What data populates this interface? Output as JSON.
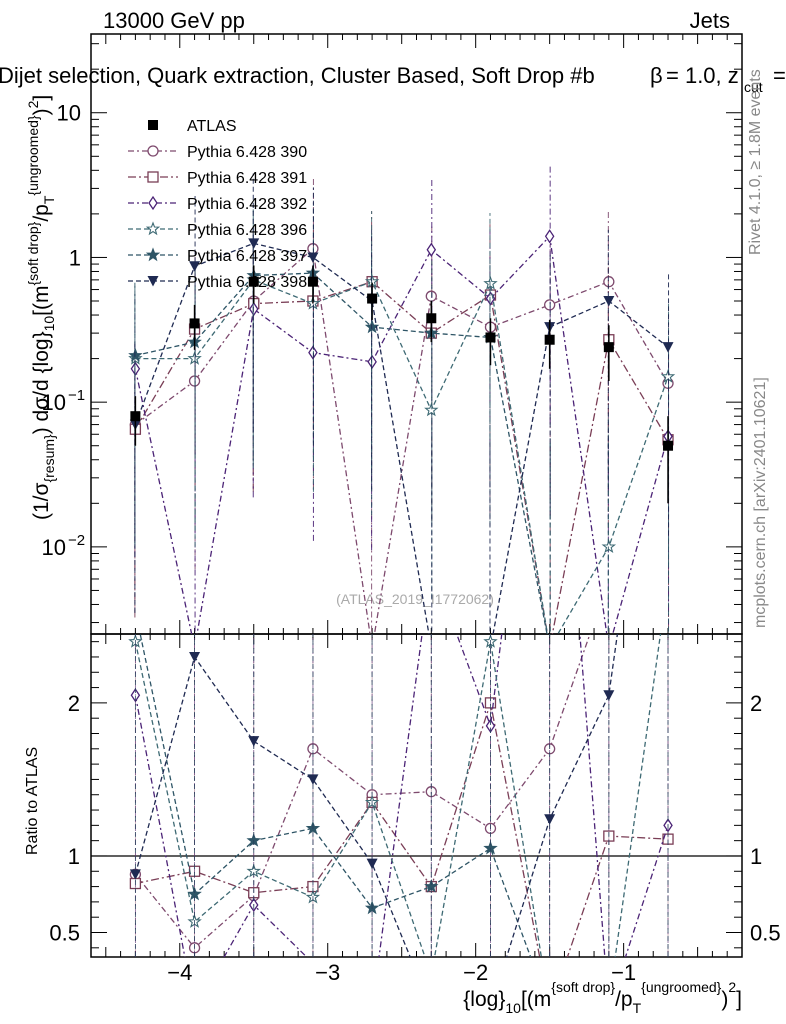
{
  "header": {
    "energy": "13000 GeV pp",
    "process": "Jets",
    "selection": "Dijet selection, Quark extraction, Cluster Based, Soft Drop #b",
    "beta_text": "= 1.0, z",
    "zcut_sub": "cut",
    "zcut_tail": "=",
    "beta_symbol": "β"
  },
  "side_labels": {
    "rivet": "Rivet 4.1.0, ≥ 1.8M events",
    "mcplots": "mcplots.cern.ch [arXiv:2401.10621]"
  },
  "watermark": "(ATLAS_2019_I1772062)",
  "axes": {
    "ylabel_main": "(1/σ_{resum}) dσ/d {log}_{10}[(m^{soft drop}/p_T^{ungroomed})^2]",
    "ylabel_ratio": "Ratio to ATLAS",
    "xlabel": "{log}_{10}[(m^{soft drop}/p_T^{ungroomed})^2]"
  },
  "colors": {
    "data": "#000000",
    "p390": "#7e4a6e",
    "p391": "#7a3e56",
    "p392": "#4b2376",
    "p396": "#3e6a74",
    "p397": "#2e5566",
    "p398": "#1f2a52"
  },
  "chart_data": {
    "type": "line",
    "x": [
      -4.3,
      -3.9,
      -3.5,
      -3.1,
      -2.7,
      -2.3,
      -1.9,
      -1.5,
      -1.1,
      -0.7
    ],
    "xlim": [
      -4.6,
      -0.2
    ],
    "xticks": [
      -4,
      -3,
      -2,
      -1
    ],
    "xtick_labels": [
      "−4",
      "−3",
      "−2",
      "−1"
    ],
    "ylim_main": [
      0.0025,
      35
    ],
    "yscale_main": "log",
    "yticks_main": [
      0.01,
      0.1,
      1,
      10
    ],
    "ylim_ratio": [
      0.34,
      2.45
    ],
    "yticks_ratio": [
      0.5,
      1,
      2
    ],
    "ytick_labels_ratio": [
      "0.5",
      "1",
      "2"
    ],
    "series": [
      {
        "name": "ATLAS",
        "key": "data",
        "marker": "square-filled",
        "values": [
          0.08,
          0.35,
          0.68,
          0.68,
          0.52,
          0.38,
          0.28,
          0.27,
          0.24,
          0.05
        ],
        "err_lo": [
          0.03,
          0.12,
          0.2,
          0.2,
          0.15,
          0.12,
          0.1,
          0.1,
          0.1,
          0.03
        ],
        "err_hi": [
          0.03,
          0.12,
          0.2,
          0.2,
          0.15,
          0.12,
          0.1,
          0.1,
          0.1,
          0.03
        ]
      },
      {
        "name": "Pythia 6.428 390",
        "key": "p390",
        "marker": "circle-open",
        "values": [
          0.07,
          0.14,
          0.5,
          1.15,
          0.002,
          0.54,
          0.33,
          0.47,
          0.68,
          0.135
        ],
        "ratio": [
          0.88,
          0.4,
          0.74,
          1.7,
          1.4,
          1.42,
          1.18,
          1.7,
          2.8,
          2.7
        ]
      },
      {
        "name": "Pythia 6.428 391",
        "key": "p391",
        "marker": "square-open",
        "values": [
          0.065,
          0.32,
          0.48,
          0.5,
          0.68,
          0.3,
          0.55,
          0.002,
          0.27,
          0.055
        ],
        "ratio": [
          0.82,
          0.9,
          0.76,
          0.8,
          1.35,
          0.8,
          2.0,
          0.002,
          1.13,
          1.11
        ]
      },
      {
        "name": "Pythia 6.428 392",
        "key": "p392",
        "marker": "diamond-open",
        "values": [
          0.17,
          0.002,
          0.44,
          0.22,
          0.19,
          1.13,
          0.52,
          1.4,
          0.002,
          0.058
        ],
        "ratio": [
          2.05,
          0.002,
          0.68,
          0.3,
          0.002,
          2.9,
          1.85,
          5.0,
          0.002,
          1.2
        ]
      },
      {
        "name": "Pythia 6.428 396",
        "key": "p396",
        "marker": "star-open",
        "values": [
          0.2,
          0.2,
          0.7,
          0.48,
          0.68,
          0.088,
          0.66,
          0.002,
          0.01,
          0.15
        ],
        "ratio": [
          2.4,
          0.57,
          0.9,
          0.73,
          1.35,
          0.22,
          2.4,
          0.002,
          0.04,
          2.8
        ]
      },
      {
        "name": "Pythia 6.428 397",
        "key": "p397",
        "marker": "star-filled",
        "values": [
          0.21,
          0.26,
          0.75,
          0.78,
          0.33,
          0.3,
          0.28,
          0.002,
          0.002,
          0.002
        ],
        "ratio": [
          2.6,
          0.75,
          1.1,
          1.18,
          0.66,
          0.8,
          1.05,
          0.002,
          0.002,
          0.002
        ]
      },
      {
        "name": "Pythia 6.428 398",
        "key": "p398",
        "marker": "triangle-down-filled",
        "values": [
          0.07,
          0.87,
          1.25,
          1.0,
          0.5,
          0.002,
          0.002,
          0.33,
          0.5,
          0.24
        ],
        "ratio": [
          0.88,
          2.3,
          1.75,
          1.5,
          0.95,
          0.002,
          0.002,
          1.24,
          2.05,
          4.8
        ]
      }
    ]
  }
}
